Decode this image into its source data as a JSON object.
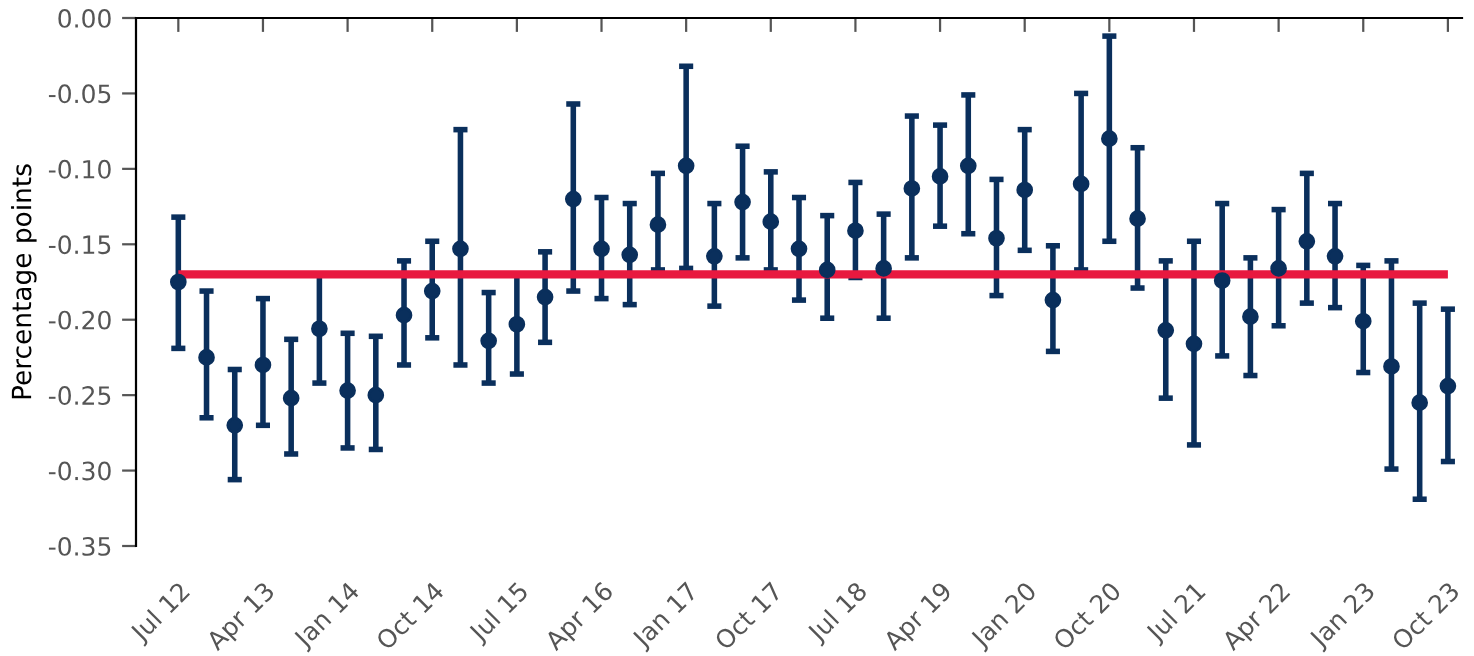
{
  "chart_data": {
    "type": "scatter",
    "ylabel": "Percentage points",
    "categories": [
      "Jul 12",
      null,
      null,
      "Apr 13",
      null,
      null,
      "Jan 14",
      null,
      null,
      "Oct 14",
      null,
      null,
      "Jul 15",
      null,
      null,
      "Apr 16",
      null,
      null,
      "Jan 17",
      null,
      null,
      "Oct 17",
      null,
      null,
      "Jul 18",
      null,
      null,
      "Apr 19",
      null,
      null,
      "Jan 20",
      null,
      null,
      "Oct 20",
      null,
      null,
      "Jul 21",
      null,
      null,
      "Apr 22",
      null,
      null,
      "Jan 23",
      null,
      null,
      "Oct 23"
    ],
    "series": [
      {
        "color": "#0a2f5c",
        "values": [
          -0.175,
          -0.225,
          -0.27,
          -0.23,
          -0.252,
          -0.206,
          -0.247,
          -0.25,
          -0.197,
          -0.181,
          -0.153,
          -0.214,
          -0.203,
          -0.185,
          -0.12,
          -0.153,
          -0.157,
          -0.137,
          -0.098,
          -0.158,
          -0.122,
          -0.135,
          -0.153,
          -0.167,
          -0.141,
          -0.166,
          -0.113,
          -0.105,
          -0.098,
          -0.146,
          -0.114,
          -0.187,
          -0.11,
          -0.08,
          -0.133,
          -0.207,
          -0.216,
          -0.174,
          -0.198,
          -0.166,
          -0.148,
          -0.158,
          -0.201,
          -0.231,
          -0.255,
          -0.244
        ],
        "errors": [
          [
            -0.219,
            -0.132
          ],
          [
            -0.265,
            -0.181
          ],
          [
            -0.306,
            -0.233
          ],
          [
            -0.27,
            -0.186
          ],
          [
            -0.289,
            -0.213
          ],
          [
            -0.242,
            -0.17
          ],
          [
            -0.285,
            -0.209
          ],
          [
            -0.286,
            -0.211
          ],
          [
            -0.23,
            -0.161
          ],
          [
            -0.212,
            -0.148
          ],
          [
            -0.23,
            -0.074
          ],
          [
            -0.242,
            -0.182
          ],
          [
            -0.236,
            -0.17
          ],
          [
            -0.215,
            -0.155
          ],
          [
            -0.181,
            -0.057
          ],
          [
            -0.186,
            -0.119
          ],
          [
            -0.19,
            -0.123
          ],
          [
            -0.167,
            -0.103
          ],
          [
            -0.166,
            -0.032
          ],
          [
            -0.191,
            -0.123
          ],
          [
            -0.159,
            -0.085
          ],
          [
            -0.167,
            -0.102
          ],
          [
            -0.187,
            -0.119
          ],
          [
            -0.199,
            -0.131
          ],
          [
            -0.172,
            -0.109
          ],
          [
            -0.199,
            -0.13
          ],
          [
            -0.159,
            -0.065
          ],
          [
            -0.138,
            -0.071
          ],
          [
            -0.143,
            -0.051
          ],
          [
            -0.184,
            -0.107
          ],
          [
            -0.154,
            -0.074
          ],
          [
            -0.221,
            -0.151
          ],
          [
            -0.167,
            -0.05
          ],
          [
            -0.148,
            -0.012
          ],
          [
            -0.179,
            -0.086
          ],
          [
            -0.252,
            -0.161
          ],
          [
            -0.283,
            -0.148
          ],
          [
            -0.224,
            -0.123
          ],
          [
            -0.237,
            -0.159
          ],
          [
            -0.204,
            -0.127
          ],
          [
            -0.189,
            -0.103
          ],
          [
            -0.192,
            -0.123
          ],
          [
            -0.235,
            -0.164
          ],
          [
            -0.299,
            -0.161
          ],
          [
            -0.319,
            -0.189
          ],
          [
            -0.294,
            -0.193
          ]
        ]
      }
    ],
    "ref_lines": [
      {
        "axis": "y",
        "value": -0.17,
        "color": "#e8193f"
      }
    ],
    "ylim": [
      -0.35,
      0.0
    ],
    "yticks": [
      {
        "value": -0.35,
        "label": "-0.35"
      },
      {
        "value": -0.3,
        "label": "-0.30"
      },
      {
        "value": -0.25,
        "label": "-0.25"
      },
      {
        "value": -0.2,
        "label": "-0.20"
      },
      {
        "value": -0.15,
        "label": "-0.15"
      },
      {
        "value": -0.1,
        "label": "-0.10"
      },
      {
        "value": -0.05,
        "label": "-0.05"
      },
      {
        "value": 0.0,
        "label": "0.00"
      }
    ],
    "marker": "circle",
    "grid": false
  }
}
